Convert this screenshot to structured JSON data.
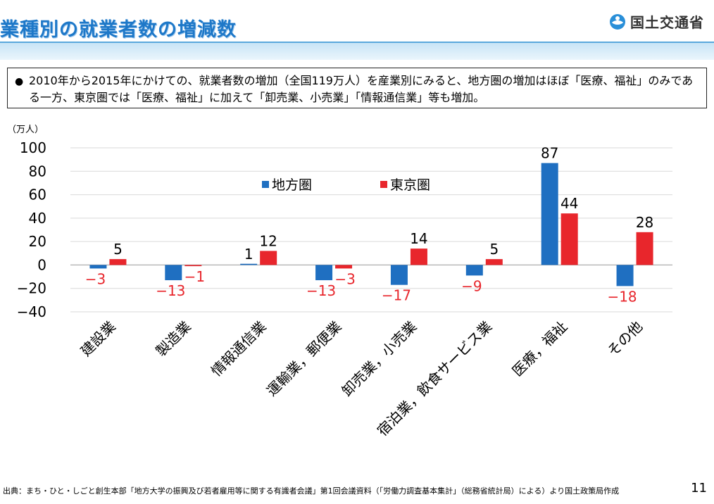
{
  "header": {
    "title": "業種別の就業者数の増減数",
    "ministry": "国土交通省"
  },
  "summary": {
    "bullet": "●",
    "text": "2010年から2015年にかけての、就業者数の増加（全国119万人）を産業別にみると、地方圏の増加はほぼ「医療、福祉」のみである一方、東京圏では「医療、福祉」に加えて「卸売業、小売業」「情報通信業」等も増加。"
  },
  "chart_data": {
    "type": "bar",
    "unit_label": "（万人）",
    "categories": [
      "建設業",
      "製造業",
      "情報通信業",
      "運輸業，郵便業",
      "卸売業，小売業",
      "宿泊業，飲食サービス業",
      "医療，福祉",
      "その他"
    ],
    "series": [
      {
        "name": "地方圏",
        "color": "#1f6fc1",
        "values": [
          -3,
          -13,
          1,
          -13,
          -17,
          -9,
          87,
          -18
        ]
      },
      {
        "name": "東京圏",
        "color": "#e8262c",
        "values": [
          5,
          -1,
          12,
          -3,
          14,
          5,
          44,
          28
        ]
      }
    ],
    "data_labels": {
      "地方圏": [
        "−3",
        "−13",
        "1",
        "−13",
        "−17",
        "−9",
        "87",
        "−18"
      ],
      "東京圏": [
        "5",
        "−1",
        "12",
        "−3",
        "14",
        "5",
        "44",
        "28"
      ]
    },
    "ylim": [
      -40,
      100
    ],
    "yticks": [
      100,
      80,
      60,
      40,
      20,
      0,
      -20,
      -40
    ],
    "ytick_labels": [
      "100",
      "80",
      "60",
      "40",
      "20",
      "0",
      "−20",
      "−40"
    ],
    "grid": true,
    "legend_position": "top-center",
    "negative_label_color": "#e8262c"
  },
  "footer": {
    "source": "出典：まち・ひと・しごと創生本部「地方大学の振興及び若者雇用等に関する有識者会議」第1回会議資料（「労働力調査基本集計」（総務省統計局）による）より国土政策局作成",
    "page_number": "11"
  }
}
